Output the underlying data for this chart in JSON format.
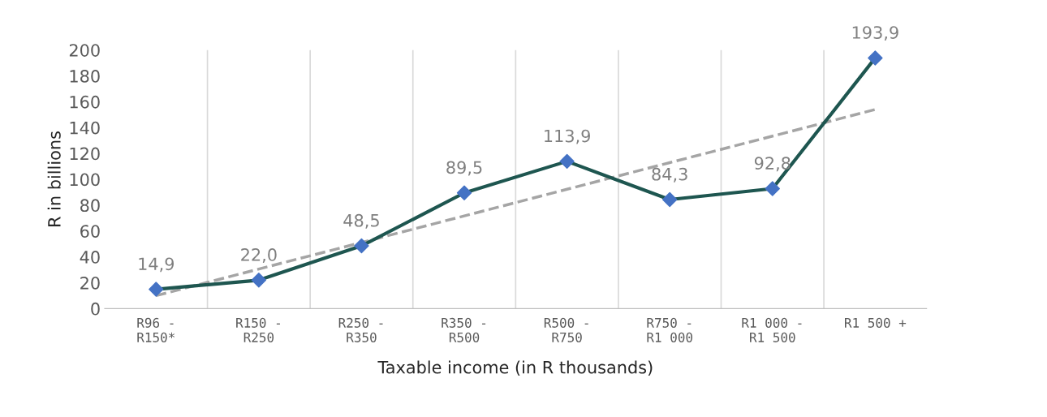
{
  "chart_data": {
    "type": "line",
    "xlabel": "Taxable income (in R thousands)",
    "ylabel": "R in billions",
    "categories": [
      "R96 - R150*",
      "R150 - R250",
      "R250 - R350",
      "R350 - R500",
      "R500 - R750",
      "R750 - R1 000",
      "R1 000 - R1 500",
      "R1 500 +"
    ],
    "series": [
      {
        "color": "#1e5650",
        "colors": [
          "#4472c4",
          "#4472c4",
          "#4472c4",
          "#4472c4",
          "#4472c4",
          "#4472c4",
          "#4472c4",
          "#4472c4"
        ],
        "marker": "diamond",
        "line_style": "solid",
        "values": [
          14.9,
          22.0,
          48.5,
          89.5,
          113.9,
          84.3,
          92.8,
          193.9
        ],
        "value_labels": [
          "14,9",
          "22,0",
          "48,5",
          "89,5",
          "113,9",
          "84,3",
          "92,8",
          "193,9"
        ]
      },
      {
        "color": "#a5a5a5",
        "marker": "none",
        "line_style": "dashed",
        "values": [
          10,
          30.6,
          51.1,
          71.7,
          92.3,
          112.9,
          133.4,
          154
        ]
      }
    ],
    "ylim": [
      0,
      200
    ],
    "yticks": [
      0,
      20,
      40,
      60,
      80,
      100,
      120,
      140,
      160,
      180,
      200
    ],
    "grid": "x",
    "legend": false
  }
}
